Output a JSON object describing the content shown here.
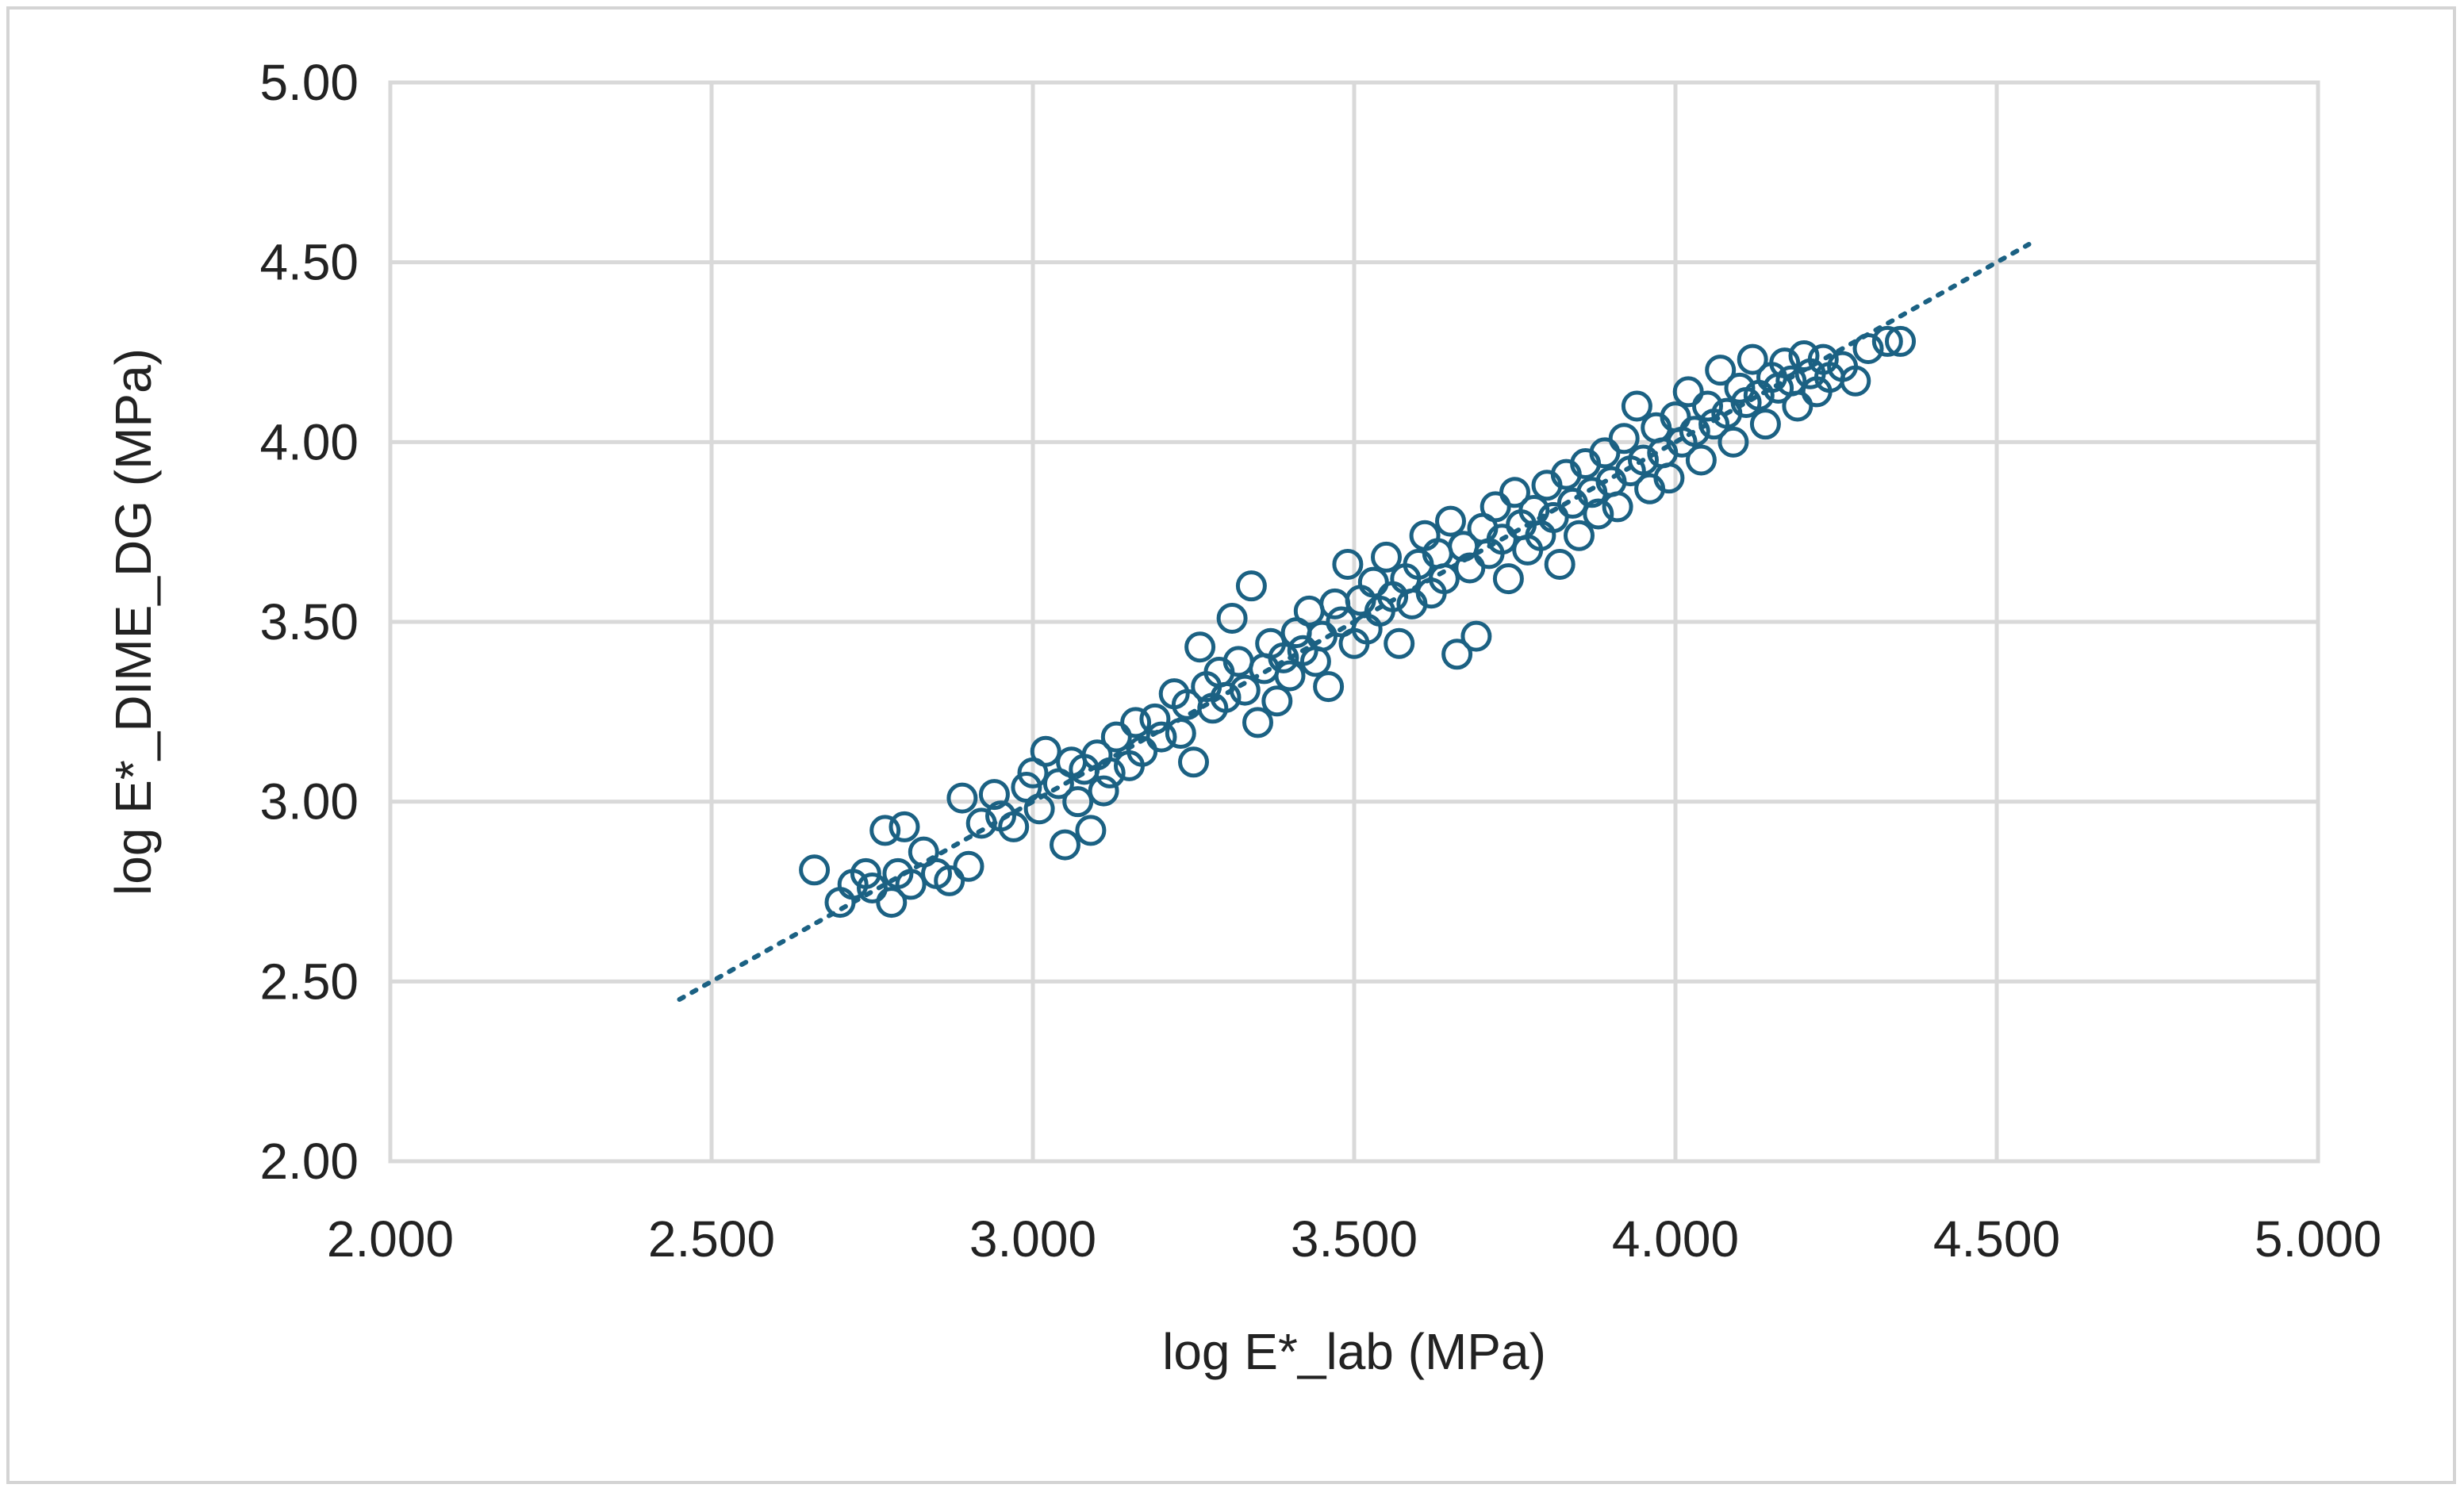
{
  "colors": {
    "series": "#1b6183",
    "grid": "#d9d9d9",
    "text": "#222222"
  },
  "chart_data": {
    "type": "scatter",
    "title": "",
    "xlabel": "log E*_lab (MPa)",
    "ylabel": "log E*_DIME_DG (MPa)",
    "xlim": [
      2.0,
      5.0
    ],
    "ylim": [
      2.0,
      5.0
    ],
    "x_ticks": [
      "2.000",
      "2.500",
      "3.000",
      "3.500",
      "4.000",
      "4.500",
      "5.000"
    ],
    "y_ticks": [
      "2.00",
      "2.50",
      "3.00",
      "3.50",
      "4.00",
      "4.50",
      "5.00"
    ],
    "grid": true,
    "legend": "none",
    "marker": "open-circle",
    "trendline": {
      "style": "dotted",
      "x": [
        2.45,
        4.55
      ],
      "y": [
        2.45,
        4.55
      ]
    },
    "series": [
      {
        "points": [
          [
            2.66,
            2.81
          ],
          [
            2.7,
            2.72
          ],
          [
            2.72,
            2.77
          ],
          [
            2.74,
            2.8
          ],
          [
            2.75,
            2.76
          ],
          [
            2.77,
            2.92
          ],
          [
            2.78,
            2.72
          ],
          [
            2.79,
            2.8
          ],
          [
            2.8,
            2.93
          ],
          [
            2.81,
            2.77
          ],
          [
            2.83,
            2.86
          ],
          [
            2.85,
            2.8
          ],
          [
            2.87,
            2.78
          ],
          [
            2.89,
            3.01
          ],
          [
            2.9,
            2.82
          ],
          [
            2.92,
            2.94
          ],
          [
            2.94,
            3.02
          ],
          [
            2.95,
            2.96
          ],
          [
            2.97,
            2.93
          ],
          [
            2.99,
            3.04
          ],
          [
            3.0,
            3.08
          ],
          [
            3.01,
            2.98
          ],
          [
            3.02,
            3.14
          ],
          [
            3.04,
            3.05
          ],
          [
            3.05,
            2.88
          ],
          [
            3.06,
            3.11
          ],
          [
            3.07,
            3.0
          ],
          [
            3.08,
            3.09
          ],
          [
            3.09,
            2.92
          ],
          [
            3.1,
            3.13
          ],
          [
            3.11,
            3.03
          ],
          [
            3.12,
            3.08
          ],
          [
            3.13,
            3.18
          ],
          [
            3.15,
            3.1
          ],
          [
            3.16,
            3.22
          ],
          [
            3.17,
            3.14
          ],
          [
            3.19,
            3.23
          ],
          [
            3.2,
            3.18
          ],
          [
            3.22,
            3.3
          ],
          [
            3.23,
            3.19
          ],
          [
            3.24,
            3.27
          ],
          [
            3.25,
            3.11
          ],
          [
            3.26,
            3.43
          ],
          [
            3.27,
            3.32
          ],
          [
            3.28,
            3.26
          ],
          [
            3.29,
            3.36
          ],
          [
            3.3,
            3.29
          ],
          [
            3.31,
            3.51
          ],
          [
            3.32,
            3.39
          ],
          [
            3.33,
            3.31
          ],
          [
            3.34,
            3.6
          ],
          [
            3.35,
            3.22
          ],
          [
            3.36,
            3.37
          ],
          [
            3.37,
            3.44
          ],
          [
            3.38,
            3.28
          ],
          [
            3.39,
            3.4
          ],
          [
            3.4,
            3.35
          ],
          [
            3.41,
            3.47
          ],
          [
            3.42,
            3.42
          ],
          [
            3.43,
            3.53
          ],
          [
            3.44,
            3.39
          ],
          [
            3.45,
            3.46
          ],
          [
            3.46,
            3.32
          ],
          [
            3.47,
            3.55
          ],
          [
            3.48,
            3.5
          ],
          [
            3.49,
            3.66
          ],
          [
            3.5,
            3.44
          ],
          [
            3.51,
            3.56
          ],
          [
            3.52,
            3.48
          ],
          [
            3.53,
            3.61
          ],
          [
            3.54,
            3.53
          ],
          [
            3.55,
            3.68
          ],
          [
            3.56,
            3.57
          ],
          [
            3.57,
            3.44
          ],
          [
            3.58,
            3.62
          ],
          [
            3.59,
            3.55
          ],
          [
            3.6,
            3.66
          ],
          [
            3.61,
            3.74
          ],
          [
            3.62,
            3.58
          ],
          [
            3.63,
            3.69
          ],
          [
            3.64,
            3.62
          ],
          [
            3.65,
            3.78
          ],
          [
            3.66,
            3.41
          ],
          [
            3.67,
            3.71
          ],
          [
            3.68,
            3.65
          ],
          [
            3.69,
            3.46
          ],
          [
            3.7,
            3.76
          ],
          [
            3.71,
            3.69
          ],
          [
            3.72,
            3.82
          ],
          [
            3.73,
            3.73
          ],
          [
            3.74,
            3.62
          ],
          [
            3.75,
            3.86
          ],
          [
            3.76,
            3.77
          ],
          [
            3.77,
            3.7
          ],
          [
            3.78,
            3.81
          ],
          [
            3.79,
            3.74
          ],
          [
            3.8,
            3.88
          ],
          [
            3.81,
            3.79
          ],
          [
            3.82,
            3.66
          ],
          [
            3.83,
            3.91
          ],
          [
            3.84,
            3.83
          ],
          [
            3.85,
            3.74
          ],
          [
            3.86,
            3.94
          ],
          [
            3.87,
            3.86
          ],
          [
            3.88,
            3.8
          ],
          [
            3.89,
            3.97
          ],
          [
            3.9,
            3.89
          ],
          [
            3.91,
            3.82
          ],
          [
            3.92,
            4.01
          ],
          [
            3.93,
            3.92
          ],
          [
            3.94,
            4.1
          ],
          [
            3.95,
            3.95
          ],
          [
            3.96,
            3.87
          ],
          [
            3.97,
            4.04
          ],
          [
            3.98,
            3.97
          ],
          [
            3.99,
            3.9
          ],
          [
            4.0,
            4.07
          ],
          [
            4.01,
            4.0
          ],
          [
            4.02,
            4.14
          ],
          [
            4.03,
            4.03
          ],
          [
            4.04,
            3.95
          ],
          [
            4.05,
            4.1
          ],
          [
            4.06,
            4.05
          ],
          [
            4.07,
            4.2
          ],
          [
            4.08,
            4.08
          ],
          [
            4.09,
            4.0
          ],
          [
            4.1,
            4.15
          ],
          [
            4.11,
            4.11
          ],
          [
            4.12,
            4.23
          ],
          [
            4.13,
            4.13
          ],
          [
            4.14,
            4.05
          ],
          [
            4.15,
            4.18
          ],
          [
            4.16,
            4.15
          ],
          [
            4.17,
            4.22
          ],
          [
            4.18,
            4.17
          ],
          [
            4.19,
            4.1
          ],
          [
            4.2,
            4.24
          ],
          [
            4.21,
            4.19
          ],
          [
            4.22,
            4.14
          ],
          [
            4.23,
            4.23
          ],
          [
            4.24,
            4.18
          ],
          [
            4.26,
            4.21
          ],
          [
            4.28,
            4.17
          ],
          [
            4.3,
            4.26
          ],
          [
            4.33,
            4.28
          ],
          [
            4.35,
            4.28
          ]
        ]
      }
    ]
  }
}
